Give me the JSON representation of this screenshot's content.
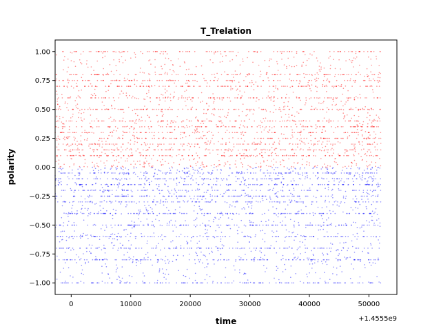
{
  "chart_data": {
    "type": "scatter",
    "title": "T_Trelation",
    "xlabel": "time",
    "ylabel": "polarity",
    "x_offset_label": "+1.4555e9",
    "xlim": [
      -2700,
      54700
    ],
    "ylim": [
      -1.1,
      1.1
    ],
    "xticks": [
      0,
      10000,
      20000,
      30000,
      40000,
      50000
    ],
    "xtick_labels": [
      "0",
      "10000",
      "20000",
      "30000",
      "40000",
      "50000"
    ],
    "yticks": [
      -1.0,
      -0.75,
      -0.5,
      -0.25,
      0.0,
      0.25,
      0.5,
      0.75,
      1.0
    ],
    "ytick_labels": [
      "−1.00",
      "−0.75",
      "−0.50",
      "−0.25",
      "0.00",
      "0.25",
      "0.50",
      "0.75",
      "1.00"
    ],
    "grid": false,
    "legend": "none",
    "x_range_of_points": [
      -2700,
      52000
    ],
    "series": [
      {
        "color": "#ff0000",
        "polarity_range": [
          0.0,
          1.0
        ],
        "dense_levels": [
          1.0,
          0.8,
          0.75,
          0.7,
          0.6,
          0.5,
          0.4,
          0.35,
          0.3,
          0.25,
          0.2,
          0.15,
          0.1
        ]
      },
      {
        "color": "#0000ff",
        "polarity_range": [
          -1.0,
          0.0
        ],
        "dense_levels": [
          -0.05,
          -0.1,
          -0.15,
          -0.2,
          -0.25,
          -0.3,
          -0.4,
          -0.5,
          -0.6,
          -0.7,
          -0.8,
          -1.0
        ]
      }
    ]
  }
}
